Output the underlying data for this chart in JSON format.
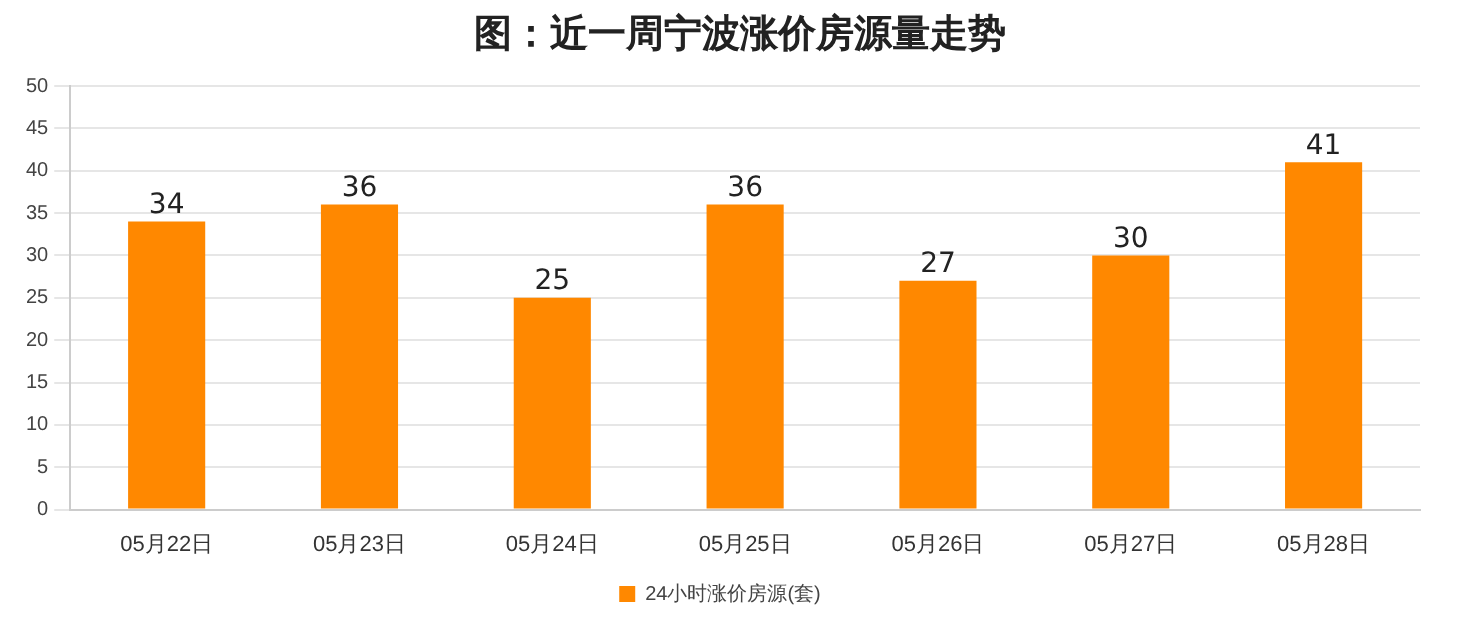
{
  "chart_data": {
    "type": "bar",
    "title": "图：近一周宁波涨价房源量走势",
    "categories": [
      "05月22日",
      "05月23日",
      "05月24日",
      "05月25日",
      "05月26日",
      "05月27日",
      "05月28日"
    ],
    "series": [
      {
        "name": "24小时涨价房源(套)",
        "color": "#ff8800",
        "values": [
          34,
          36,
          25,
          36,
          27,
          30,
          41
        ]
      }
    ],
    "ylim": [
      0,
      50
    ],
    "yticks": [
      0,
      5,
      10,
      15,
      20,
      25,
      30,
      35,
      40,
      45,
      50
    ],
    "grid": "y",
    "legend": "bottom",
    "data_labels": true
  }
}
